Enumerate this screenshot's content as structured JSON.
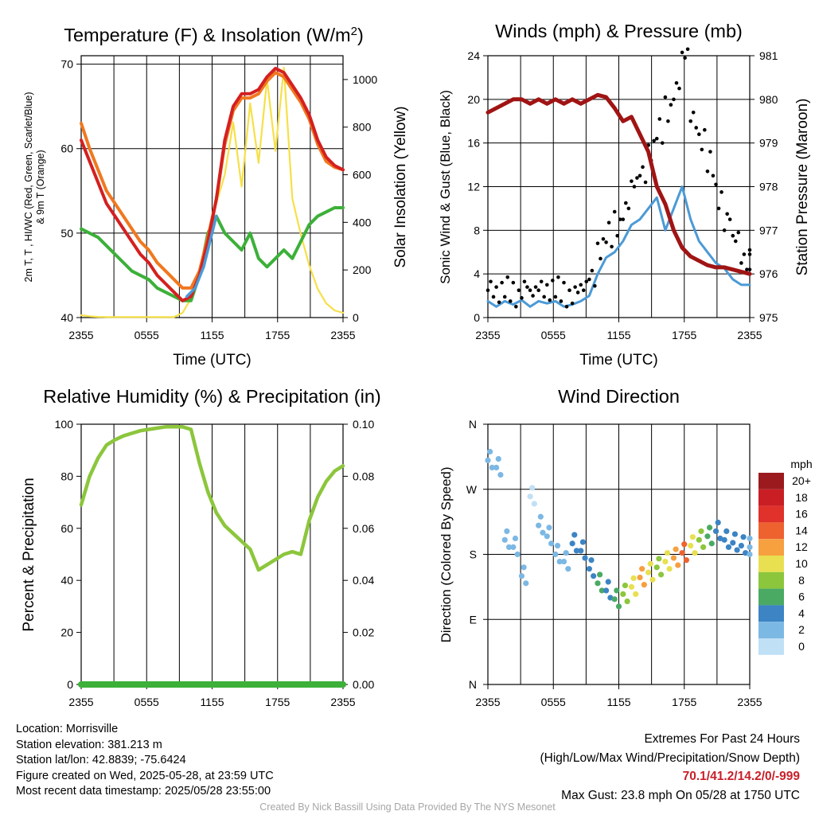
{
  "colors": {
    "temp": "#d42020",
    "dewpoint": "#3cb039",
    "heat_index": "#d42020",
    "temp_9m": "#f07820",
    "insolation": "#f6e048",
    "wind": "#4b9ad6",
    "gust": "#000000",
    "pressure": "#a01414",
    "rh": "#8cc63c",
    "precip": "#3cb039"
  },
  "charts": [
    {
      "id": "temp",
      "type": "line",
      "title_main": "Temperature (F) & Insolation (W/m",
      "title_sup": "2",
      "title_end": ")",
      "ylabel_line1": "2m T, T  , HI/WC (Red, Green, Scarlet/Blue)",
      "ylabel_line2": "& 9m T (Orange)",
      "y2label": "Solar Insolation (Yellow)",
      "xlabel": "Time (UTC)",
      "xticks": [
        "2355",
        "0555",
        "1155",
        "1755",
        "2355"
      ],
      "ylim": [
        40,
        71
      ],
      "y2lim": [
        0,
        1100
      ],
      "yticks": [
        40,
        50,
        60,
        70
      ],
      "y2ticks": [
        0,
        200,
        400,
        600,
        800,
        1000
      ]
    },
    {
      "id": "wind",
      "type": "line",
      "title_main": "Winds (mph) & Pressure (mb)",
      "ylabel_line1": "Sonic Wind & Gust (Blue, Black)",
      "y2label": "Station Pressure (Maroon)",
      "xlabel": "Time (UTC)",
      "xticks": [
        "2355",
        "0555",
        "1155",
        "1755",
        "2355"
      ],
      "ylim": [
        0,
        24
      ],
      "y2lim": [
        975,
        981
      ],
      "yticks": [
        0,
        4,
        8,
        12,
        16,
        20,
        24
      ],
      "y2ticks": [
        975,
        976,
        977,
        978,
        979,
        980,
        981
      ]
    },
    {
      "id": "rh",
      "type": "line",
      "title_main": "Relative Humidity (%) & Precipitation (in)",
      "ylabel_line1": "Percent & Precipitation",
      "xticks": [
        "2355",
        "0555",
        "1155",
        "1755",
        "2355"
      ],
      "ylim": [
        0,
        100
      ],
      "y2lim": [
        0,
        0.1
      ],
      "yticks": [
        0,
        20,
        40,
        60,
        80,
        100
      ],
      "y2ticks": [
        "0.00",
        "0.02",
        "0.04",
        "0.06",
        "0.08",
        "0.10"
      ]
    },
    {
      "id": "dir",
      "type": "scatter",
      "title_main": "Wind Direction",
      "ylabel_line1": "Direction (Colored By Speed)",
      "xticks": [
        "2355",
        "0555",
        "1155",
        "1755",
        "2355"
      ],
      "yticks": [
        "N",
        "E",
        "S",
        "W",
        "N"
      ],
      "ylim": [
        0,
        360
      ],
      "legend_title": "mph",
      "legend_labels": [
        "20+",
        "18",
        "16",
        "14",
        "12",
        "10",
        "8",
        "6",
        "4",
        "2",
        "0"
      ],
      "legend_colors": [
        "#9a1a1e",
        "#c81e24",
        "#e0312b",
        "#ee6230",
        "#f6a040",
        "#e8e050",
        "#8cc63c",
        "#4aaa64",
        "#3c84c4",
        "#7cb8e4",
        "#c0e0f6"
      ]
    }
  ],
  "temp_series": {
    "temp": [
      [
        0,
        61
      ],
      [
        1,
        58.5
      ],
      [
        2,
        56
      ],
      [
        3,
        53.5
      ],
      [
        4,
        52
      ],
      [
        5,
        50.5
      ],
      [
        6,
        49
      ],
      [
        7,
        47.5
      ],
      [
        8,
        46.5
      ],
      [
        9,
        45
      ],
      [
        10,
        44
      ],
      [
        11,
        43
      ],
      [
        12,
        42
      ],
      [
        13,
        42.5
      ],
      [
        14,
        45
      ],
      [
        15,
        49
      ],
      [
        16,
        54
      ],
      [
        17,
        61
      ],
      [
        18,
        65
      ],
      [
        19,
        66.5
      ],
      [
        20,
        66.5
      ],
      [
        21,
        67
      ],
      [
        22,
        68.5
      ],
      [
        23,
        69.5
      ],
      [
        24,
        69
      ],
      [
        25,
        67.5
      ],
      [
        26,
        66
      ],
      [
        27,
        64
      ],
      [
        28,
        61
      ],
      [
        29,
        59
      ],
      [
        30,
        58
      ],
      [
        31,
        57.5
      ]
    ],
    "temp_9m": [
      [
        0,
        63
      ],
      [
        1,
        60
      ],
      [
        2,
        57.5
      ],
      [
        3,
        55
      ],
      [
        4,
        53.5
      ],
      [
        5,
        52
      ],
      [
        6,
        50.5
      ],
      [
        7,
        49
      ],
      [
        8,
        48
      ],
      [
        9,
        46.5
      ],
      [
        10,
        45.5
      ],
      [
        11,
        44.5
      ],
      [
        12,
        43.5
      ],
      [
        13,
        43.5
      ],
      [
        14,
        45.5
      ],
      [
        15,
        49.5
      ],
      [
        16,
        54
      ],
      [
        17,
        60.5
      ],
      [
        18,
        64.5
      ],
      [
        19,
        66
      ],
      [
        20,
        66
      ],
      [
        21,
        66.5
      ],
      [
        22,
        68
      ],
      [
        23,
        69
      ],
      [
        24,
        68.5
      ],
      [
        25,
        67
      ],
      [
        26,
        65.5
      ],
      [
        27,
        63.5
      ],
      [
        28,
        60.5
      ],
      [
        29,
        58.5
      ],
      [
        30,
        57.8
      ],
      [
        31,
        57.5
      ]
    ],
    "dewpoint": [
      [
        0,
        50.5
      ],
      [
        1,
        50
      ],
      [
        2,
        49.5
      ],
      [
        3,
        48.5
      ],
      [
        4,
        47.5
      ],
      [
        5,
        46.5
      ],
      [
        6,
        45.5
      ],
      [
        7,
        45
      ],
      [
        8,
        44.5
      ],
      [
        9,
        43.5
      ],
      [
        10,
        43
      ],
      [
        11,
        42.5
      ],
      [
        12,
        42
      ],
      [
        13,
        42
      ],
      [
        14,
        45
      ],
      [
        15,
        50
      ],
      [
        16,
        52
      ],
      [
        17,
        50
      ],
      [
        18,
        49
      ],
      [
        19,
        48
      ],
      [
        20,
        50
      ],
      [
        21,
        47
      ],
      [
        22,
        46
      ],
      [
        23,
        47
      ],
      [
        24,
        48
      ],
      [
        25,
        47
      ],
      [
        26,
        49
      ],
      [
        27,
        51
      ],
      [
        28,
        52
      ],
      [
        29,
        52.5
      ],
      [
        30,
        53
      ],
      [
        31,
        53
      ]
    ],
    "hi_blue": [
      [
        12.5,
        42.5
      ],
      [
        13.5,
        43.5
      ],
      [
        14.5,
        46
      ],
      [
        15.5,
        50
      ],
      [
        16,
        52
      ]
    ],
    "insolation": [
      [
        0,
        10
      ],
      [
        1,
        5
      ],
      [
        2,
        3
      ],
      [
        3,
        2
      ],
      [
        4,
        2
      ],
      [
        5,
        2
      ],
      [
        6,
        2
      ],
      [
        7,
        2
      ],
      [
        8,
        2
      ],
      [
        9,
        2
      ],
      [
        10,
        2
      ],
      [
        11,
        2
      ],
      [
        12,
        20
      ],
      [
        13,
        80
      ],
      [
        14,
        200
      ],
      [
        15,
        350
      ],
      [
        16,
        480
      ],
      [
        17,
        600
      ],
      [
        18,
        820
      ],
      [
        19,
        550
      ],
      [
        20,
        900
      ],
      [
        21,
        650
      ],
      [
        22,
        1000
      ],
      [
        23,
        700
      ],
      [
        24,
        1050
      ],
      [
        25,
        500
      ],
      [
        26,
        350
      ],
      [
        27,
        220
      ],
      [
        28,
        120
      ],
      [
        29,
        60
      ],
      [
        30,
        30
      ],
      [
        31,
        20
      ]
    ]
  },
  "wind_series": {
    "wind": [
      [
        0,
        1.5
      ],
      [
        1,
        1
      ],
      [
        2,
        1.5
      ],
      [
        3,
        1.2
      ],
      [
        4,
        1.6
      ],
      [
        5,
        1
      ],
      [
        6,
        1.5
      ],
      [
        7,
        1.3
      ],
      [
        8,
        1.5
      ],
      [
        9,
        1
      ],
      [
        10,
        1.2
      ],
      [
        11,
        1.5
      ],
      [
        12,
        2
      ],
      [
        13,
        4
      ],
      [
        14,
        5.5
      ],
      [
        15,
        6
      ],
      [
        16,
        7
      ],
      [
        17,
        8.5
      ],
      [
        18,
        9
      ],
      [
        19,
        10
      ],
      [
        20,
        11
      ],
      [
        21,
        8
      ],
      [
        22,
        10
      ],
      [
        23,
        12
      ],
      [
        24,
        9
      ],
      [
        25,
        7
      ],
      [
        26,
        6
      ],
      [
        27,
        5
      ],
      [
        28,
        4.5
      ],
      [
        29,
        3.5
      ],
      [
        30,
        3
      ],
      [
        31,
        3
      ]
    ],
    "gust": [
      [
        0,
        2.5
      ],
      [
        1,
        2
      ],
      [
        2,
        2.5
      ],
      [
        3,
        2
      ],
      [
        4,
        2.8
      ],
      [
        5,
        2
      ],
      [
        6,
        2.5
      ],
      [
        7,
        2.2
      ],
      [
        8,
        2.5
      ],
      [
        9,
        2
      ],
      [
        10,
        2.3
      ],
      [
        11,
        2.5
      ],
      [
        12,
        3.5
      ],
      [
        13,
        6
      ],
      [
        14,
        7.5
      ],
      [
        15,
        8.5
      ],
      [
        16,
        10
      ],
      [
        17,
        12
      ],
      [
        18,
        13
      ],
      [
        19,
        15
      ],
      [
        20,
        17
      ],
      [
        21,
        19
      ],
      [
        22,
        21
      ],
      [
        23,
        23.8
      ],
      [
        24,
        18
      ],
      [
        25,
        16
      ],
      [
        26,
        14
      ],
      [
        27,
        11
      ],
      [
        28,
        9
      ],
      [
        29,
        7
      ],
      [
        30,
        5
      ],
      [
        31,
        5
      ]
    ],
    "pressure": [
      [
        0,
        979.7
      ],
      [
        1,
        979.8
      ],
      [
        2,
        979.9
      ],
      [
        3,
        980
      ],
      [
        4,
        980
      ],
      [
        5,
        979.9
      ],
      [
        6,
        980
      ],
      [
        7,
        979.9
      ],
      [
        8,
        980
      ],
      [
        9,
        979.9
      ],
      [
        10,
        980
      ],
      [
        11,
        979.9
      ],
      [
        12,
        980
      ],
      [
        13,
        980.1
      ],
      [
        14,
        980.05
      ],
      [
        15,
        979.8
      ],
      [
        16,
        979.5
      ],
      [
        17,
        979.6
      ],
      [
        18,
        979.2
      ],
      [
        19,
        978.8
      ],
      [
        20,
        978
      ],
      [
        21,
        977.6
      ],
      [
        22,
        977
      ],
      [
        23,
        976.6
      ],
      [
        24,
        976.4
      ],
      [
        25,
        976.3
      ],
      [
        26,
        976.2
      ],
      [
        27,
        976.15
      ],
      [
        28,
        976.15
      ],
      [
        29,
        976.1
      ],
      [
        30,
        976.05
      ],
      [
        31,
        976
      ]
    ]
  },
  "rh_series": {
    "rh": [
      [
        0,
        69
      ],
      [
        1,
        80
      ],
      [
        2,
        87
      ],
      [
        3,
        92
      ],
      [
        4,
        94
      ],
      [
        5,
        95.5
      ],
      [
        6,
        96.5
      ],
      [
        7,
        97.5
      ],
      [
        8,
        98
      ],
      [
        9,
        98.5
      ],
      [
        10,
        99
      ],
      [
        11,
        99
      ],
      [
        12,
        99
      ],
      [
        13,
        98
      ],
      [
        14,
        85
      ],
      [
        15,
        74
      ],
      [
        16,
        66
      ],
      [
        17,
        61
      ],
      [
        18,
        58
      ],
      [
        19,
        55
      ],
      [
        20,
        52
      ],
      [
        21,
        44
      ],
      [
        22,
        46
      ],
      [
        23,
        48
      ],
      [
        24,
        50
      ],
      [
        25,
        51
      ],
      [
        26,
        50
      ],
      [
        27,
        63
      ],
      [
        28,
        72
      ],
      [
        29,
        78
      ],
      [
        30,
        82
      ],
      [
        31,
        84
      ]
    ],
    "precip": [
      [
        0,
        0
      ],
      [
        31,
        0
      ]
    ]
  },
  "dir_points": [
    [
      0,
      310,
      2
    ],
    [
      1,
      300,
      2
    ],
    [
      2,
      200,
      2
    ],
    [
      3,
      190,
      1
    ],
    [
      4,
      150,
      2
    ],
    [
      5,
      260,
      0
    ],
    [
      6,
      220,
      1
    ],
    [
      7,
      205,
      2
    ],
    [
      8,
      180,
      1
    ],
    [
      9,
      170,
      1
    ],
    [
      10,
      195,
      3
    ],
    [
      11,
      185,
      3
    ],
    [
      12,
      160,
      4
    ],
    [
      13,
      140,
      5
    ],
    [
      14,
      130,
      4
    ],
    [
      15,
      118,
      6
    ],
    [
      16,
      125,
      8
    ],
    [
      17,
      135,
      10
    ],
    [
      18,
      148,
      12
    ],
    [
      19,
      155,
      10
    ],
    [
      20,
      162,
      8
    ],
    [
      21,
      170,
      9
    ],
    [
      22,
      175,
      12
    ],
    [
      23,
      182,
      14
    ],
    [
      24,
      192,
      10
    ],
    [
      25,
      200,
      8
    ],
    [
      26,
      205,
      5
    ],
    [
      27,
      212,
      4
    ],
    [
      28,
      200,
      4
    ],
    [
      29,
      196,
      3
    ],
    [
      30,
      192,
      3
    ],
    [
      31,
      190,
      2
    ]
  ],
  "info": {
    "location": "Location: Morrisville",
    "elevation": "Station elevation: 381.213 m",
    "latlon": "Station lat/lon: 42.8839; -75.6424",
    "created": "Figure created on Wed, 2025-05-28, at 23:59 UTC",
    "recent": "Most recent data timestamp: 2025/05/28 23:55:00"
  },
  "extremes": {
    "title": "Extremes For Past 24 Hours",
    "subtitle": "(High/Low/Max Wind/Precipitation/Snow Depth)",
    "values": "70.1/41.2/14.2/0/-999",
    "gust": "Max Gust: 23.8 mph On 05/28 at 1750 UTC"
  },
  "credit": "Created By Nick Bassill Using Data Provided By The NYS Mesonet"
}
